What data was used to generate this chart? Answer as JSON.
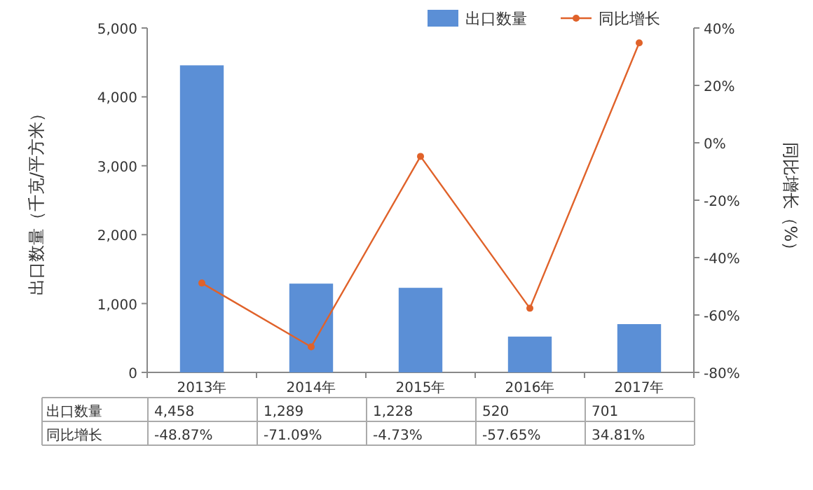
{
  "chart_data": {
    "type": "bar",
    "ylabel": "出口数量（千克/平方米）",
    "y2label": "同比增长（%）",
    "categories": [
      "2013年",
      "2014年",
      "2015年",
      "2016年",
      "2017年"
    ],
    "series": [
      {
        "name": "出口数量",
        "color": "#5b8fd6",
        "values": [
          4458,
          1289,
          1228,
          520,
          701
        ],
        "value_labels": [
          "4,458",
          "1,289",
          "1,228",
          "520",
          "701"
        ]
      },
      {
        "name": "同比增长",
        "type": "line",
        "axis": "y2",
        "color": "#e0622a",
        "marker": "circle",
        "values": [
          -48.87,
          -71.09,
          -4.73,
          -57.65,
          34.81
        ],
        "value_labels": [
          "-48.87%",
          "-71.09%",
          "-4.73%",
          "-57.65%",
          "34.81%"
        ]
      }
    ],
    "ylim": [
      0,
      5000
    ],
    "yticks": [
      0,
      {
        "value": 1000,
        "label": "1,000"
      },
      {
        "value": 2000,
        "label": "2,000"
      },
      {
        "value": 3000,
        "label": "3,000"
      },
      {
        "value": 4000,
        "label": "4,000"
      },
      {
        "value": 5000,
        "label": "5,000"
      }
    ],
    "y2lim": [
      -80,
      40
    ],
    "y2ticks": [
      {
        "value": -80,
        "label": "-80%"
      },
      {
        "value": -60,
        "label": "-60%"
      },
      {
        "value": -40,
        "label": "-40%"
      },
      {
        "value": -20,
        "label": "-20%"
      },
      {
        "value": 0,
        "label": "0%"
      },
      {
        "value": 20,
        "label": "20%"
      },
      {
        "value": 40,
        "label": "40%"
      }
    ],
    "legend": "top right",
    "grid": false
  }
}
